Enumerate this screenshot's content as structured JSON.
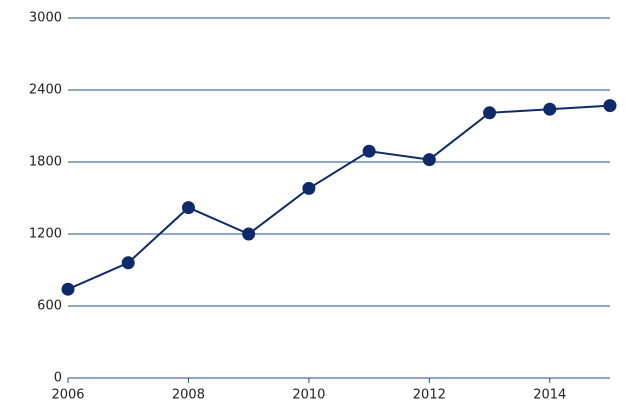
{
  "chart_data": {
    "type": "line",
    "x": [
      2006,
      2007,
      2008,
      2009,
      2010,
      2011,
      2012,
      2013,
      2014,
      2015
    ],
    "series": [
      {
        "color": "#0e2a6b",
        "values": [
          740,
          960,
          1420,
          1200,
          1580,
          1890,
          1820,
          2210,
          2240,
          2270
        ]
      }
    ],
    "xlim": [
      2006,
      2015
    ],
    "xticks": [
      2006,
      2008,
      2010,
      2012,
      2014
    ],
    "ylim": [
      0,
      3000
    ],
    "yticks": [
      0,
      600,
      1200,
      1800,
      2400,
      3000
    ],
    "grid": true,
    "grid_color": "#1f4f82"
  }
}
